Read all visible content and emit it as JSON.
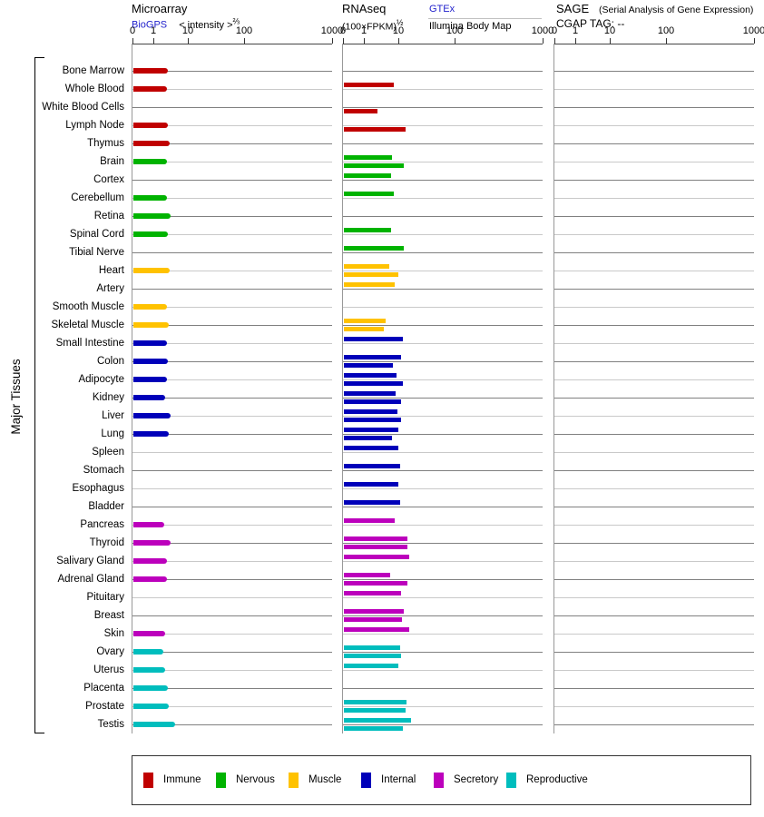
{
  "header": {
    "microarray": {
      "title": "Microarray",
      "link": "BioGPS",
      "note": "< intensity >",
      "note_sup": "⅔"
    },
    "rnaseq": {
      "title": "RNAseq",
      "unit": "(100×FPKM)",
      "unit_sup": "½",
      "link": "GTEx",
      "sublabel": "Illumina Body Map"
    },
    "sage": {
      "title": "SAGE",
      "subtitle": "(Serial Analysis of Gene Expression)",
      "cgap": "CGAP TAG: --"
    }
  },
  "side_label": "Major Tissues",
  "axis": {
    "ticks": [
      "0",
      "1",
      "10",
      "100",
      "1000"
    ]
  },
  "legend": [
    {
      "label": "Immune",
      "category": "immune"
    },
    {
      "label": "Nervous",
      "category": "nervous"
    },
    {
      "label": "Muscle",
      "category": "muscle"
    },
    {
      "label": "Internal",
      "category": "internal"
    },
    {
      "label": "Secretory",
      "category": "secretory"
    },
    {
      "label": "Reproductive",
      "category": "reproductive"
    }
  ],
  "chart_data": {
    "type": "bar",
    "orientation": "horizontal",
    "panels": [
      "Microarray",
      "RNAseq GTEx",
      "RNAseq Illumina Body Map",
      "SAGE"
    ],
    "axis_ticks": [
      0,
      1,
      10,
      100,
      1000
    ],
    "scale": "piecewise linear between decade ticks",
    "sage_values": "none (CGAP TAG: --)",
    "colors": {
      "immune": "#c00000",
      "nervous": "#00b300",
      "muscle": "#ffc200",
      "internal": "#0000b9",
      "secretory": "#bc00bc",
      "reproductive": "#00bdbd"
    },
    "rows": [
      {
        "tissue": "Bone Marrow",
        "category": "immune",
        "microarray": 4.5,
        "gtex": null,
        "illumina": null
      },
      {
        "tissue": "Whole Blood",
        "category": "immune",
        "microarray": 4.3,
        "gtex": 8.6,
        "illumina": null
      },
      {
        "tissue": "White Blood Cells",
        "category": "immune",
        "microarray": null,
        "gtex": null,
        "illumina": 4.3
      },
      {
        "tissue": "Lymph Node",
        "category": "immune",
        "microarray": 4.6,
        "gtex": null,
        "illumina": 20
      },
      {
        "tissue": "Thymus",
        "category": "immune",
        "microarray": 5.1,
        "gtex": null,
        "illumina": null
      },
      {
        "tissue": "Brain",
        "category": "nervous",
        "microarray": 4.2,
        "gtex": 8.1,
        "illumina": 17.3
      },
      {
        "tissue": "Cortex",
        "category": "nervous",
        "microarray": null,
        "gtex": 7.9,
        "illumina": null
      },
      {
        "tissue": "Cerebellum",
        "category": "nervous",
        "microarray": 4.3,
        "gtex": 8.6,
        "illumina": null
      },
      {
        "tissue": "Retina",
        "category": "nervous",
        "microarray": 5.3,
        "gtex": null,
        "illumina": null
      },
      {
        "tissue": "Spinal Cord",
        "category": "nervous",
        "microarray": 4.6,
        "gtex": 7.9,
        "illumina": null
      },
      {
        "tissue": "Tibial Nerve",
        "category": "nervous",
        "microarray": null,
        "gtex": 17.3,
        "illumina": null
      },
      {
        "tissue": "Heart",
        "category": "muscle",
        "microarray": 5.0,
        "gtex": 7.3,
        "illumina": 9.8
      },
      {
        "tissue": "Artery",
        "category": "muscle",
        "microarray": null,
        "gtex": 8.8,
        "illumina": null
      },
      {
        "tissue": "Smooth Muscle",
        "category": "muscle",
        "microarray": 4.3,
        "gtex": null,
        "illumina": null
      },
      {
        "tissue": "Skeletal Muscle",
        "category": "muscle",
        "microarray": 4.9,
        "gtex": 6.4,
        "illumina": 5.9
      },
      {
        "tissue": "Small Intestine",
        "category": "internal",
        "microarray": 4.2,
        "gtex": 16.2,
        "illumina": null
      },
      {
        "tissue": "Colon",
        "category": "internal",
        "microarray": 4.5,
        "gtex": 12.5,
        "illumina": 8.3
      },
      {
        "tissue": "Adipocyte",
        "category": "internal",
        "microarray": 4.2,
        "gtex": 9.2,
        "illumina": 16.2
      },
      {
        "tissue": "Kidney",
        "category": "internal",
        "microarray": 3.9,
        "gtex": 9.1,
        "illumina": 12.5
      },
      {
        "tissue": "Liver",
        "category": "internal",
        "microarray": 5.3,
        "gtex": 9.5,
        "illumina": 12.5
      },
      {
        "tissue": "Lung",
        "category": "internal",
        "microarray": 4.7,
        "gtex": 9.7,
        "illumina": 8.0
      },
      {
        "tissue": "Spleen",
        "category": "internal",
        "microarray": null,
        "gtex": 9.8,
        "illumina": null
      },
      {
        "tissue": "Stomach",
        "category": "internal",
        "microarray": null,
        "gtex": 11.5,
        "illumina": null
      },
      {
        "tissue": "Esophagus",
        "category": "internal",
        "microarray": null,
        "gtex": 9.8,
        "illumina": null
      },
      {
        "tissue": "Bladder",
        "category": "internal",
        "microarray": null,
        "gtex": 11.5,
        "illumina": null
      },
      {
        "tissue": "Pancreas",
        "category": "secretory",
        "microarray": 3.5,
        "gtex": 8.8,
        "illumina": null
      },
      {
        "tissue": "Thyroid",
        "category": "secretory",
        "microarray": 5.3,
        "gtex": 23.5,
        "illumina": 22.6
      },
      {
        "tissue": "Salivary Gland",
        "category": "secretory",
        "microarray": 4.2,
        "gtex": 26,
        "illumina": null
      },
      {
        "tissue": "Adrenal Gland",
        "category": "secretory",
        "microarray": 4.2,
        "gtex": 7.6,
        "illumina": 23.5
      },
      {
        "tissue": "Pituitary",
        "category": "secretory",
        "microarray": null,
        "gtex": 12.9,
        "illumina": null
      },
      {
        "tissue": "Breast",
        "category": "secretory",
        "microarray": null,
        "gtex": 17.3,
        "illumina": 14.8
      },
      {
        "tissue": "Skin",
        "category": "secretory",
        "microarray": 3.9,
        "gtex": 26,
        "illumina": null
      },
      {
        "tissue": "Ovary",
        "category": "reproductive",
        "microarray": 3.3,
        "gtex": 11.5,
        "illumina": 12.9
      },
      {
        "tissue": "Uterus",
        "category": "reproductive",
        "microarray": 3.8,
        "gtex": 9.8,
        "illumina": null
      },
      {
        "tissue": "Placenta",
        "category": "reproductive",
        "microarray": 4.5,
        "gtex": null,
        "illumina": null
      },
      {
        "tissue": "Prostate",
        "category": "reproductive",
        "microarray": 4.9,
        "gtex": 22,
        "illumina": 20.2
      },
      {
        "tissue": "Testis",
        "category": "reproductive",
        "microarray": 6.5,
        "gtex": 29.3,
        "illumina": 15.4
      }
    ]
  }
}
